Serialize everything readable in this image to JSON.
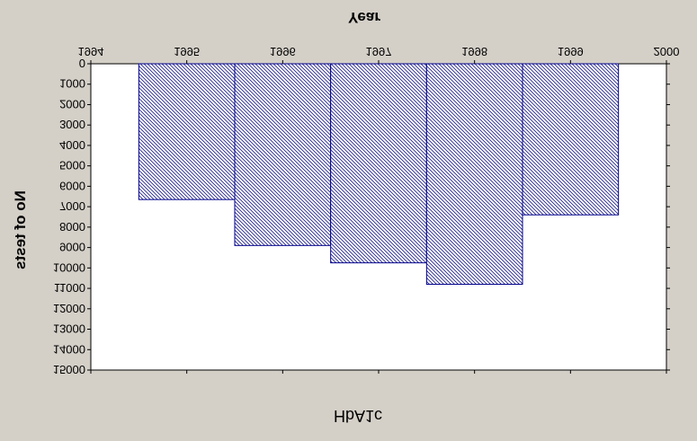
{
  "chart_data": {
    "type": "bar",
    "title": "",
    "xlabel": "Year",
    "ylabel": "No of tests",
    "caption": "HbA1c",
    "x": [
      1995,
      1996,
      1997,
      1998,
      1999
    ],
    "values": [
      6650,
      8900,
      9750,
      10800,
      7400
    ],
    "xlim": [
      1994,
      2000
    ],
    "xticks": [
      1994,
      1995,
      1996,
      1997,
      1998,
      1999,
      2000
    ],
    "ylim": [
      0,
      15000
    ],
    "yticks": [
      0,
      1000,
      2000,
      3000,
      4000,
      5000,
      6000,
      7000,
      8000,
      9000,
      10000,
      11000,
      12000,
      13000,
      14000,
      15000
    ],
    "orientation": "mirrored vertically",
    "grid": false,
    "legend": "none",
    "colors": {
      "background": "#d4d0c8",
      "plot_background": "#ffffff",
      "bar_stroke": "#00008b",
      "bar_hatch": "#1a1a8c"
    }
  }
}
